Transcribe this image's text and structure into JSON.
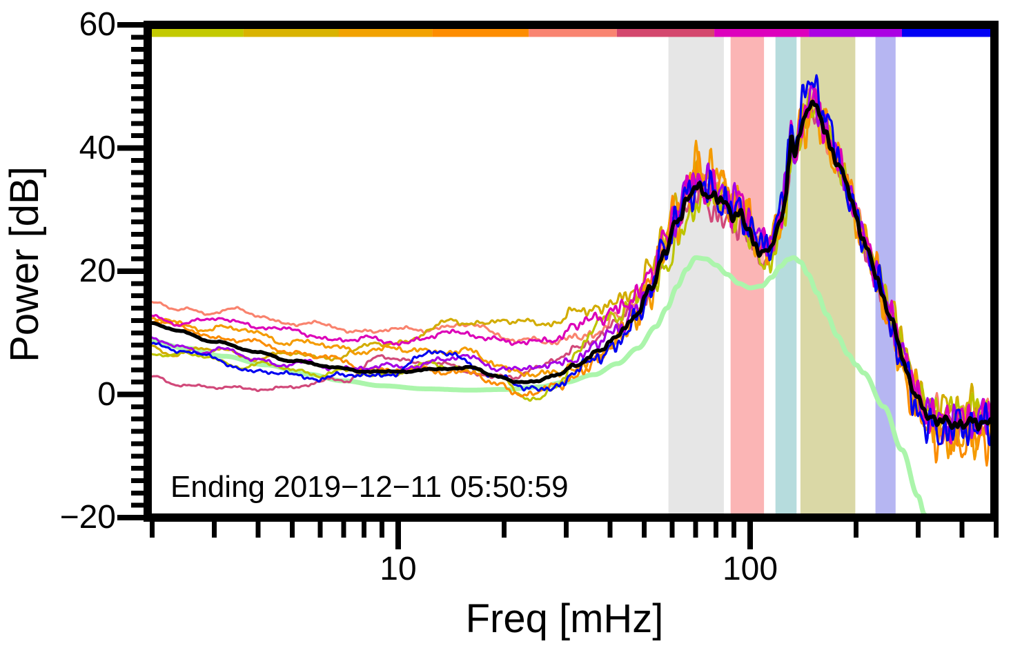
{
  "page": {
    "background": "#ffffff"
  },
  "chart_data": {
    "type": "line",
    "x_scale": "log",
    "xlabel": "Freq [mHz]",
    "ylabel": "Power [dB]",
    "annotation": "Ending 2019−12−11 05:50:59",
    "xlim": [
      1.94,
      494
    ],
    "ylim": [
      -20,
      60
    ],
    "x_major_ticks": [
      10,
      100
    ],
    "x_major_tick_labels": [
      "10",
      "100"
    ],
    "x_minor_ticks": [
      2,
      3,
      4,
      5,
      6,
      7,
      8,
      9,
      20,
      30,
      40,
      50,
      60,
      70,
      80,
      90,
      200,
      300,
      400,
      500
    ],
    "y_major_ticks": [
      60,
      40,
      20,
      0,
      -20
    ],
    "y_major_tick_labels": [
      "60",
      "40",
      "20",
      "0",
      "−20"
    ],
    "y_minor_tick_step": 2,
    "axis_color": "#000000",
    "grid": false,
    "legend": "none",
    "top_bar_segments": [
      {
        "f0": 1.94,
        "f1": 3.63,
        "color": "#c3ca01"
      },
      {
        "f0": 3.63,
        "f1": 6.78,
        "color": "#d9b301"
      },
      {
        "f0": 6.78,
        "f1": 12.5,
        "color": "#f2a201"
      },
      {
        "f0": 12.5,
        "f1": 23.5,
        "color": "#fd8d01"
      },
      {
        "f0": 23.5,
        "f1": 41.8,
        "color": "#f98471"
      },
      {
        "f0": 41.8,
        "f1": 79.1,
        "color": "#d4486e"
      },
      {
        "f0": 79.1,
        "f1": 147.0,
        "color": "#dd01bd"
      },
      {
        "f0": 147.0,
        "f1": 270.0,
        "color": "#ab01e3"
      },
      {
        "f0": 270.0,
        "f1": 494.0,
        "color": "#0101f4"
      }
    ],
    "bands": [
      {
        "f0": 58.6,
        "f1": 84.2,
        "color": "#e6e6e6"
      },
      {
        "f0": 88.0,
        "f1": 109.5,
        "color": "#fbb5b5"
      },
      {
        "f0": 118.0,
        "f1": 135.5,
        "color": "#b6dcdd"
      },
      {
        "f0": 139.0,
        "f1": 199.0,
        "color": "#dad8a6"
      },
      {
        "f0": 227.0,
        "f1": 259.0,
        "color": "#b6b6f2"
      }
    ],
    "noise_profile": [
      [
        1.94,
        0.12
      ],
      [
        25,
        0.25
      ],
      [
        40,
        0.7
      ],
      [
        52,
        1.5
      ],
      [
        60,
        2.0
      ],
      [
        90,
        2.2
      ],
      [
        110,
        1.7
      ],
      [
        125,
        2.1
      ],
      [
        160,
        2.0
      ],
      [
        210,
        1.8
      ],
      [
        260,
        2.0
      ],
      [
        494,
        2.3
      ]
    ],
    "series": [
      {
        "name": "low-noise-model",
        "color": "#abf5ab",
        "width": 7,
        "noise": 0,
        "wander": 0,
        "seed": 1,
        "points": [
          [
            1.94,
            8.8
          ],
          [
            2.5,
            7.5
          ],
          [
            3.2,
            6.2
          ],
          [
            4.2,
            4.8
          ],
          [
            5.5,
            3.3
          ],
          [
            7,
            2.2
          ],
          [
            9,
            1.4
          ],
          [
            12,
            0.9
          ],
          [
            16,
            0.7
          ],
          [
            20,
            0.8
          ],
          [
            25,
            1.2
          ],
          [
            30,
            2.0
          ],
          [
            36,
            3.2
          ],
          [
            42,
            5.0
          ],
          [
            48,
            7.5
          ],
          [
            54,
            11.0
          ],
          [
            58,
            14.0
          ],
          [
            62,
            17.5
          ],
          [
            66,
            20.3
          ],
          [
            70,
            22.2
          ],
          [
            75,
            22.0
          ],
          [
            80,
            21.0
          ],
          [
            86,
            19.5
          ],
          [
            93,
            18.0
          ],
          [
            100,
            17.3
          ],
          [
            108,
            17.6
          ],
          [
            115,
            19.0
          ],
          [
            122,
            20.8
          ],
          [
            128,
            21.9
          ],
          [
            133,
            22.2
          ],
          [
            139,
            21.5
          ],
          [
            146,
            19.5
          ],
          [
            155,
            16.5
          ],
          [
            165,
            13.0
          ],
          [
            177,
            9.5
          ],
          [
            190,
            6.5
          ],
          [
            200,
            4.8
          ],
          [
            210,
            3.5
          ],
          [
            240,
            -2.0
          ],
          [
            270,
            -9.0
          ],
          [
            300,
            -16.5
          ],
          [
            313,
            -19.5
          ],
          [
            320,
            -21.0
          ]
        ]
      },
      {
        "name": "spectrum-salmon",
        "color": "#f9836e",
        "width": 3.2,
        "noise": 0.95,
        "wander": 0.7,
        "seed": 7,
        "offsets": [
          [
            1.94,
            3
          ],
          [
            4,
            6
          ],
          [
            8,
            6.6
          ],
          [
            14,
            6.8
          ],
          [
            22,
            7
          ],
          [
            30,
            5
          ],
          [
            40,
            3
          ],
          [
            55,
            1.2
          ],
          [
            70,
            0.6
          ],
          [
            110,
            0.5
          ],
          [
            150,
            -0.4
          ],
          [
            200,
            0.2
          ],
          [
            300,
            1
          ],
          [
            494,
            1.4
          ]
        ]
      },
      {
        "name": "spectrum-rose",
        "color": "#d1497a",
        "width": 3.2,
        "noise": 0.9,
        "wander": 0.7,
        "seed": 13,
        "offsets": [
          [
            1.94,
            -9.2
          ],
          [
            3,
            -7.5
          ],
          [
            5,
            -4.5
          ],
          [
            7,
            -1.5
          ],
          [
            9,
            2.2
          ],
          [
            12,
            1.5
          ],
          [
            16,
            -0.8
          ],
          [
            22,
            1
          ],
          [
            30,
            3
          ],
          [
            40,
            2
          ],
          [
            55,
            0
          ],
          [
            80,
            -2
          ],
          [
            120,
            -1
          ],
          [
            200,
            0
          ],
          [
            300,
            -1
          ],
          [
            494,
            -0.5
          ]
        ]
      },
      {
        "name": "spectrum-gold",
        "color": "#d2ac00",
        "width": 3.2,
        "noise": 1.1,
        "wander": 0.7,
        "seed": 23,
        "offsets": [
          [
            1.94,
            -4.1
          ],
          [
            3.5,
            -1
          ],
          [
            6,
            1.5
          ],
          [
            10,
            5
          ],
          [
            15,
            7.5
          ],
          [
            22,
            9.5
          ],
          [
            30,
            9
          ],
          [
            40,
            6
          ],
          [
            55,
            3
          ],
          [
            70,
            1.2
          ],
          [
            100,
            1
          ],
          [
            140,
            0.5
          ],
          [
            200,
            1
          ],
          [
            300,
            2
          ],
          [
            494,
            2.6
          ]
        ]
      },
      {
        "name": "spectrum-olive",
        "color": "#bcc400",
        "width": 3.2,
        "noise": 1.0,
        "wander": 0.7,
        "seed": 31,
        "offsets": [
          [
            1.94,
            -4.5
          ],
          [
            3,
            -3
          ],
          [
            5,
            -1.5
          ],
          [
            8,
            -0.5
          ],
          [
            12,
            0.5
          ],
          [
            18,
            0
          ],
          [
            24,
            -2.5
          ],
          [
            28,
            -2
          ],
          [
            33,
            2
          ],
          [
            38,
            5
          ],
          [
            45,
            3
          ],
          [
            55,
            -2
          ],
          [
            62,
            -4
          ],
          [
            70,
            -2
          ],
          [
            80,
            0.3
          ],
          [
            100,
            -1
          ],
          [
            130,
            -2
          ],
          [
            160,
            0
          ],
          [
            220,
            0.5
          ],
          [
            300,
            1.5
          ],
          [
            494,
            2
          ]
        ]
      },
      {
        "name": "spectrum-dark-orange",
        "color": "#fb8c01",
        "width": 3.2,
        "noise": 1.35,
        "wander": 0.7,
        "seed": 41,
        "offsets": [
          [
            1.94,
            0.4
          ],
          [
            5,
            1.5
          ],
          [
            12,
            0
          ],
          [
            20,
            -1.5
          ],
          [
            30,
            -2
          ],
          [
            45,
            0
          ],
          [
            60,
            2
          ],
          [
            80,
            2.2
          ],
          [
            110,
            1
          ],
          [
            150,
            0
          ],
          [
            200,
            1
          ],
          [
            300,
            -2
          ],
          [
            400,
            -3
          ],
          [
            494,
            -2
          ]
        ]
      },
      {
        "name": "spectrum-orange",
        "color": "#f49b01",
        "width": 3.2,
        "noise": 1.4,
        "wander": 0.7,
        "seed": 47,
        "offsets": [
          [
            1.94,
            0.7
          ],
          [
            4,
            3
          ],
          [
            10,
            3.5
          ],
          [
            20,
            2
          ],
          [
            30,
            0
          ],
          [
            45,
            -1
          ],
          [
            60,
            0.5
          ],
          [
            75,
            4
          ],
          [
            85,
            3
          ],
          [
            120,
            0
          ],
          [
            150,
            -1
          ],
          [
            250,
            -0.5
          ],
          [
            400,
            -2
          ],
          [
            494,
            -1
          ]
        ]
      },
      {
        "name": "spectrum-purple",
        "color": "#a400e6",
        "width": 3.2,
        "noise": 1.15,
        "wander": 0.7,
        "seed": 53,
        "offsets": [
          [
            1.94,
            -2.7
          ],
          [
            4,
            -1
          ],
          [
            8,
            0.5
          ],
          [
            15,
            1.5
          ],
          [
            25,
            2
          ],
          [
            40,
            1
          ],
          [
            60,
            0.6
          ],
          [
            80,
            2
          ],
          [
            110,
            1.5
          ],
          [
            150,
            0.6
          ],
          [
            250,
            0.5
          ],
          [
            494,
            0.3
          ]
        ]
      },
      {
        "name": "spectrum-magenta",
        "color": "#dc00b8",
        "width": 3.2,
        "noise": 1.2,
        "wander": 0.7,
        "seed": 61,
        "offsets": [
          [
            1.94,
            1
          ],
          [
            4,
            4.5
          ],
          [
            10,
            5
          ],
          [
            20,
            6
          ],
          [
            30,
            6.5
          ],
          [
            45,
            4
          ],
          [
            60,
            1.2
          ],
          [
            80,
            1
          ],
          [
            120,
            1
          ],
          [
            160,
            0
          ],
          [
            250,
            0.5
          ],
          [
            494,
            0.5
          ]
        ]
      },
      {
        "name": "spectrum-blue",
        "color": "#0000f0",
        "width": 3.2,
        "noise": 1.25,
        "wander": 0.7,
        "seed": 67,
        "offsets": [
          [
            1.94,
            -3
          ],
          [
            4,
            -3
          ],
          [
            8,
            -1
          ],
          [
            13,
            2.5
          ],
          [
            20,
            -0.5
          ],
          [
            28,
            -1.5
          ],
          [
            40,
            -1
          ],
          [
            55,
            0
          ],
          [
            70,
            1
          ],
          [
            90,
            0
          ],
          [
            120,
            2
          ],
          [
            150,
            3
          ],
          [
            200,
            0
          ],
          [
            300,
            -1.5
          ],
          [
            494,
            -0.5
          ]
        ]
      },
      {
        "name": "mean-spectrum",
        "color": "#000000",
        "width": 5.5,
        "noise": 0.35,
        "wander": 0.15,
        "seed": 5,
        "points": [
          [
            1.94,
            11.7
          ],
          [
            2.4,
            10.2
          ],
          [
            3.0,
            8.6
          ],
          [
            4.0,
            6.8
          ],
          [
            5.0,
            5.5
          ],
          [
            6.5,
            4.4
          ],
          [
            8.0,
            3.8
          ],
          [
            10,
            3.6
          ],
          [
            13,
            4.2
          ],
          [
            16,
            4.3
          ],
          [
            19,
            3.0
          ],
          [
            22,
            2.0
          ],
          [
            25,
            2.2
          ],
          [
            28,
            3.0
          ],
          [
            32,
            4.8
          ],
          [
            37,
            7.0
          ],
          [
            42,
            9.5
          ],
          [
            47,
            12.5
          ],
          [
            52,
            17.0
          ],
          [
            57,
            23.0
          ],
          [
            62,
            28.0
          ],
          [
            66,
            31.5
          ],
          [
            70,
            33.6
          ],
          [
            74,
            32.8
          ],
          [
            78,
            32.2
          ],
          [
            82,
            31.5
          ],
          [
            86,
            30.5
          ],
          [
            90,
            29.2
          ],
          [
            94,
            29.5
          ],
          [
            98,
            27.0
          ],
          [
            103,
            24.5
          ],
          [
            107,
            23.2
          ],
          [
            110,
            22.9
          ],
          [
            114,
            23.5
          ],
          [
            118,
            25.5
          ],
          [
            122,
            28.5
          ],
          [
            126,
            32.0
          ],
          [
            129,
            38.0
          ],
          [
            131,
            41.0
          ],
          [
            134,
            39.0
          ],
          [
            138,
            42.0
          ],
          [
            143,
            45.0
          ],
          [
            148,
            47.7
          ],
          [
            153,
            47.0
          ],
          [
            158,
            45.0
          ],
          [
            163,
            43.0
          ],
          [
            169,
            40.3
          ],
          [
            177,
            37.7
          ],
          [
            185,
            35.0
          ],
          [
            193,
            32.0
          ],
          [
            200,
            28.7
          ],
          [
            209,
            25.3
          ],
          [
            219,
            22.2
          ],
          [
            229,
            19.0
          ],
          [
            240,
            15.5
          ],
          [
            252,
            12.0
          ],
          [
            265,
            8.0
          ],
          [
            278,
            4.0
          ],
          [
            292,
            0.5
          ],
          [
            306,
            -2.0
          ],
          [
            320,
            -3.5
          ],
          [
            340,
            -4.3
          ],
          [
            370,
            -4.6
          ],
          [
            400,
            -4.8
          ],
          [
            440,
            -4.5
          ],
          [
            470,
            -4.5
          ],
          [
            494,
            -3.8
          ]
        ]
      }
    ]
  }
}
